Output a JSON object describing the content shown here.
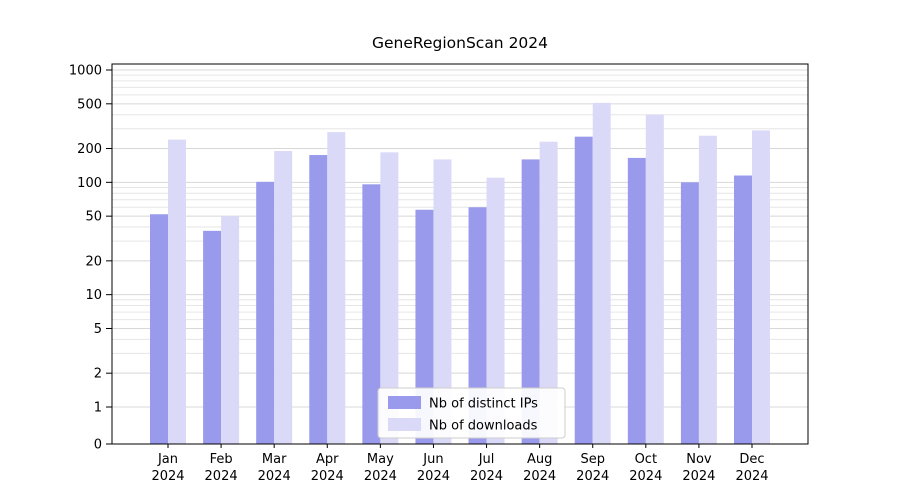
{
  "chart": {
    "title": "GeneRegionScan 2024",
    "background": "#ffffff"
  },
  "chart_data": {
    "type": "bar",
    "title": "GeneRegionScan 2024",
    "categories": [
      "Jan 2024",
      "Feb 2024",
      "Mar 2024",
      "Apr 2024",
      "May 2024",
      "Jun 2024",
      "Jul 2024",
      "Aug 2024",
      "Sep 2024",
      "Oct 2024",
      "Nov 2024",
      "Dec 2024"
    ],
    "series": [
      {
        "name": "Nb of distinct IPs",
        "color": "#9a9aec",
        "values": [
          52,
          37,
          101,
          175,
          96,
          57,
          60,
          160,
          255,
          165,
          100,
          115
        ]
      },
      {
        "name": "Nb of downloads",
        "color": "#dadaf8",
        "values": [
          240,
          50,
          190,
          280,
          185,
          160,
          110,
          230,
          510,
          400,
          260,
          290
        ]
      }
    ],
    "xlabel": "",
    "ylabel": "",
    "yticks": [
      0,
      1,
      2,
      5,
      10,
      20,
      50,
      100,
      200,
      500,
      1000
    ],
    "ylim": [
      0,
      1000
    ],
    "yscale": "log",
    "grid": true,
    "grid_color_major": "#d8d8d8",
    "grid_color_minor": "#e6e6e6",
    "legend_position": "bottom-center"
  }
}
